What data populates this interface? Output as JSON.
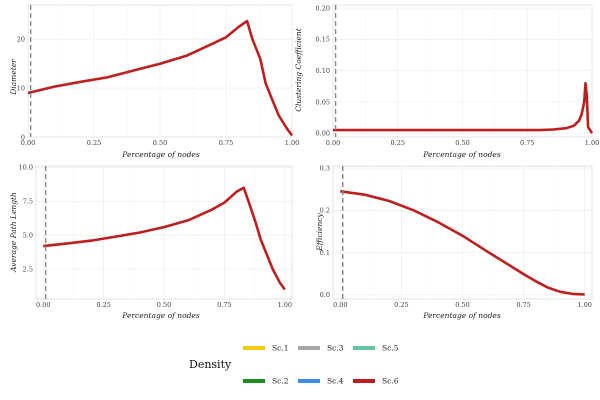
{
  "legend": {
    "title": "Density",
    "items": [
      {
        "label": "Sc.1",
        "color": "#F2CC0C"
      },
      {
        "label": "Sc.3",
        "color": "#A6A6A6"
      },
      {
        "label": "Sc.5",
        "color": "#66C2A5"
      },
      {
        "label": "Sc.2",
        "color": "#1E8C1E"
      },
      {
        "label": "Sc.4",
        "color": "#3C8FE0"
      },
      {
        "label": "Sc.6",
        "color": "#C01E1E"
      }
    ]
  },
  "chart_data": [
    {
      "type": "line",
      "title": "",
      "xlabel": "Percentage of nodes",
      "ylabel": "Diameter",
      "xlim": [
        0,
        1
      ],
      "ylim": [
        0,
        27
      ],
      "xticks": [
        "0.00",
        "0.25",
        "0.50",
        "0.75",
        "1.00"
      ],
      "xtick_values": [
        0,
        0.25,
        0.5,
        0.75,
        1
      ],
      "yticks": [
        "0",
        "10",
        "20"
      ],
      "ytick_values": [
        0,
        10,
        20
      ],
      "vline": 0.01,
      "x": [
        0.0,
        0.1,
        0.2,
        0.3,
        0.4,
        0.5,
        0.6,
        0.7,
        0.75,
        0.8,
        0.83,
        0.85,
        0.88,
        0.9,
        0.93,
        0.95,
        0.98,
        1.0
      ],
      "series": [
        {
          "name": "Sc.6",
          "values": [
            9,
            10.3,
            11.3,
            12.2,
            13.6,
            15,
            16.6,
            19.1,
            20.4,
            22.6,
            23.7,
            20,
            16,
            11,
            7,
            4.4,
            1.8,
            0.3
          ]
        }
      ]
    },
    {
      "type": "line",
      "title": "",
      "xlabel": "Percentage of nodes",
      "ylabel": "Clustering Coefficient",
      "xlim": [
        0,
        1
      ],
      "ylim": [
        -0.006,
        0.205
      ],
      "xticks": [
        "0.00",
        "0.25",
        "0.50",
        "0.75",
        "1.00"
      ],
      "xtick_values": [
        0,
        0.25,
        0.5,
        0.75,
        1
      ],
      "yticks": [
        "0.00",
        "0.05",
        "0.10",
        "0.15",
        "0.20"
      ],
      "ytick_values": [
        0,
        0.05,
        0.1,
        0.15,
        0.2
      ],
      "vline": 0.01,
      "x": [
        0.0,
        0.2,
        0.4,
        0.6,
        0.8,
        0.85,
        0.9,
        0.93,
        0.95,
        0.96,
        0.97,
        0.975,
        0.98,
        0.985,
        1.0
      ],
      "series": [
        {
          "name": "Sc.6",
          "values": [
            0.005,
            0.005,
            0.005,
            0.005,
            0.005,
            0.006,
            0.008,
            0.012,
            0.02,
            0.03,
            0.05,
            0.08,
            0.06,
            0.01,
            0.0
          ]
        }
      ]
    },
    {
      "type": "line",
      "title": "",
      "xlabel": "Percentage of nodes",
      "ylabel": "Average Path Length",
      "xlim": [
        -0.03,
        1.03
      ],
      "ylim": [
        0.3,
        10.1
      ],
      "xticks": [
        "0.00",
        "0.25",
        "0.50",
        "0.75",
        "1.00"
      ],
      "xtick_values": [
        0,
        0.25,
        0.5,
        0.75,
        1
      ],
      "yticks": [
        "2.5",
        "5.0",
        "7.5",
        "10.0"
      ],
      "ytick_values": [
        2.5,
        5,
        7.5,
        10
      ],
      "vline": 0.01,
      "x": [
        0.0,
        0.1,
        0.2,
        0.3,
        0.4,
        0.5,
        0.6,
        0.7,
        0.75,
        0.8,
        0.83,
        0.85,
        0.88,
        0.9,
        0.93,
        0.95,
        0.98,
        1.0
      ],
      "series": [
        {
          "name": "Sc.6",
          "values": [
            4.2,
            4.4,
            4.6,
            4.9,
            5.2,
            5.6,
            6.1,
            6.9,
            7.4,
            8.2,
            8.5,
            7.5,
            5.9,
            4.7,
            3.4,
            2.5,
            1.5,
            1.0
          ]
        }
      ]
    },
    {
      "type": "line",
      "title": "",
      "xlabel": "Percentage of nodes",
      "ylabel": "Efficiency",
      "xlim": [
        -0.03,
        1.03
      ],
      "ylim": [
        -0.01,
        0.305
      ],
      "xticks": [
        "0.00",
        "0.25",
        "0.50",
        "0.75",
        "1.00"
      ],
      "xtick_values": [
        0,
        0.25,
        0.5,
        0.75,
        1
      ],
      "yticks": [
        "0.0",
        "0.1",
        "0.2",
        "0.3"
      ],
      "ytick_values": [
        0,
        0.1,
        0.2,
        0.3
      ],
      "vline": 0.01,
      "x": [
        0.0,
        0.1,
        0.2,
        0.3,
        0.4,
        0.5,
        0.6,
        0.7,
        0.75,
        0.8,
        0.85,
        0.9,
        0.95,
        1.0
      ],
      "series": [
        {
          "name": "Sc.6",
          "values": [
            0.245,
            0.237,
            0.222,
            0.2,
            0.172,
            0.14,
            0.103,
            0.067,
            0.049,
            0.032,
            0.017,
            0.007,
            0.002,
            0.001
          ]
        }
      ]
    }
  ]
}
